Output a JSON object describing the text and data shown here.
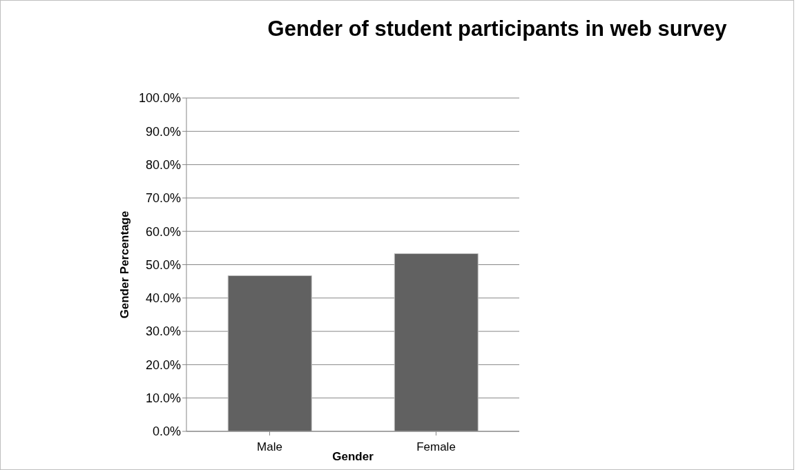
{
  "chart_data": {
    "type": "bar",
    "title": "Gender of student participants in web survey",
    "xlabel": "Gender",
    "ylabel": "Gender Percentage",
    "categories": [
      "Male",
      "Female"
    ],
    "values": [
      46.7,
      53.3
    ],
    "color": "#616161",
    "ylim": [
      0,
      100
    ],
    "yticks": [
      {
        "value": 0,
        "label": "0.0%"
      },
      {
        "value": 10,
        "label": "10.0%"
      },
      {
        "value": 20,
        "label": "20.0%"
      },
      {
        "value": 30,
        "label": "30.0%"
      },
      {
        "value": 40,
        "label": "40.0%"
      },
      {
        "value": 50,
        "label": "50.0%"
      },
      {
        "value": 60,
        "label": "60.0%"
      },
      {
        "value": 70,
        "label": "70.0%"
      },
      {
        "value": 80,
        "label": "80.0%"
      },
      {
        "value": 90,
        "label": "90.0%"
      },
      {
        "value": 100,
        "label": "100.0%"
      }
    ],
    "grid": "y",
    "legend": false
  }
}
